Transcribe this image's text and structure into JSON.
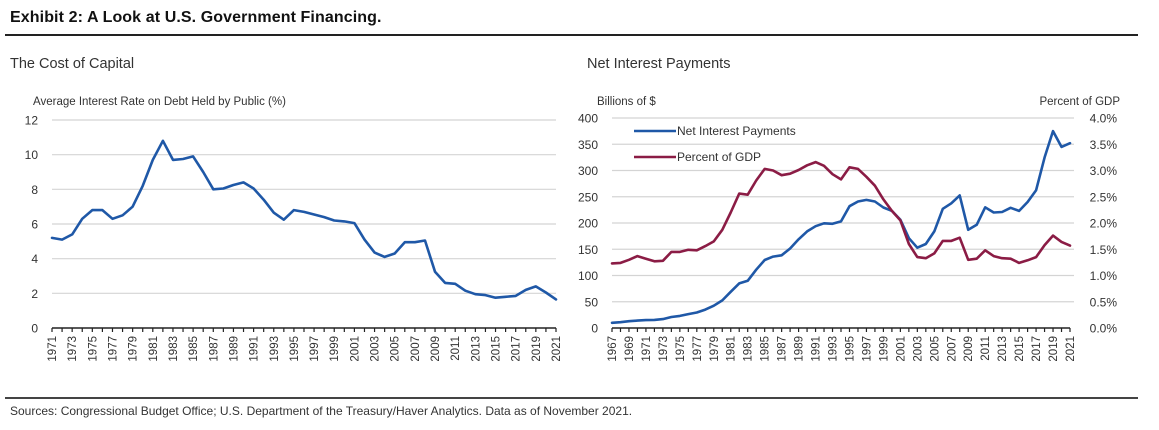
{
  "exhibit_title": "Exhibit 2: A Look at U.S. Government Financing.",
  "sources": "Sources: Congressional Budget Office; U.S. Department of the Treasury/Haver Analytics. Data as of November 2021.",
  "colors": {
    "blue": "#1f58a7",
    "maroon": "#8b1c45",
    "grid": "#d4d4d4"
  },
  "chart_data": [
    {
      "type": "line",
      "title": "The Cost of Capital",
      "ylabel": "Average Interest Rate on Debt Held by Public (%)",
      "xlabel": "",
      "ylim": [
        0,
        12
      ],
      "yticks": [
        "0",
        "2",
        "4",
        "6",
        "8",
        "10",
        "12"
      ],
      "ytick_values": [
        0,
        2,
        4,
        6,
        8,
        10,
        12
      ],
      "grid": true,
      "x": [
        1971,
        1972,
        1973,
        1974,
        1975,
        1976,
        1977,
        1978,
        1979,
        1980,
        1981,
        1982,
        1983,
        1984,
        1985,
        1986,
        1987,
        1988,
        1989,
        1990,
        1991,
        1992,
        1993,
        1994,
        1995,
        1996,
        1997,
        1998,
        1999,
        2000,
        2001,
        2002,
        2003,
        2004,
        2005,
        2006,
        2007,
        2008,
        2009,
        2010,
        2011,
        2012,
        2013,
        2014,
        2015,
        2016,
        2017,
        2018,
        2019,
        2020,
        2021
      ],
      "xtick_labels": [
        "1971",
        "1973",
        "1975",
        "1977",
        "1979",
        "1981",
        "1983",
        "1985",
        "1987",
        "1989",
        "1991",
        "1993",
        "1995",
        "1997",
        "1999",
        "2001",
        "2003",
        "2005",
        "2007",
        "2009",
        "2011",
        "2013",
        "2015",
        "2017",
        "2019",
        "2021"
      ],
      "series": [
        {
          "name": "Average Interest Rate",
          "color": "#1f58a7",
          "values": [
            5.2,
            5.1,
            5.4,
            6.3,
            6.8,
            6.8,
            6.3,
            6.5,
            7.0,
            8.2,
            9.7,
            10.8,
            9.7,
            9.75,
            9.9,
            9.0,
            8.0,
            8.05,
            8.25,
            8.4,
            8.05,
            7.4,
            6.65,
            6.25,
            6.8,
            6.7,
            6.55,
            6.4,
            6.2,
            6.15,
            6.05,
            5.1,
            4.35,
            4.1,
            4.3,
            4.95,
            4.95,
            5.05,
            3.25,
            2.6,
            2.55,
            2.15,
            1.95,
            1.9,
            1.75,
            1.8,
            1.85,
            2.2,
            2.4,
            2.05,
            1.65
          ]
        }
      ]
    },
    {
      "type": "line",
      "title": "Net Interest Payments",
      "ylabel": "Billions of $",
      "y2label": "Percent of GDP",
      "ylim": [
        0,
        400
      ],
      "y2lim": [
        0,
        4
      ],
      "yticks": [
        "0",
        "50",
        "100",
        "150",
        "200",
        "250",
        "300",
        "350",
        "400"
      ],
      "ytick_values": [
        0,
        50,
        100,
        150,
        200,
        250,
        300,
        350,
        400
      ],
      "y2ticks": [
        "0.0%",
        "0.5%",
        "1.0%",
        "1.5%",
        "2.0%",
        "2.5%",
        "3.0%",
        "3.5%",
        "4.0%"
      ],
      "grid": true,
      "legend_position": "top-left",
      "x": [
        1967,
        1968,
        1969,
        1970,
        1971,
        1972,
        1973,
        1974,
        1975,
        1976,
        1977,
        1978,
        1979,
        1980,
        1981,
        1982,
        1983,
        1984,
        1985,
        1986,
        1987,
        1988,
        1989,
        1990,
        1991,
        1992,
        1993,
        1994,
        1995,
        1996,
        1997,
        1998,
        1999,
        2000,
        2001,
        2002,
        2003,
        2004,
        2005,
        2006,
        2007,
        2008,
        2009,
        2010,
        2011,
        2012,
        2013,
        2014,
        2015,
        2016,
        2017,
        2018,
        2019,
        2020,
        2021
      ],
      "xtick_labels": [
        "1967",
        "1969",
        "1971",
        "1973",
        "1975",
        "1977",
        "1979",
        "1981",
        "1983",
        "1985",
        "1987",
        "1989",
        "1991",
        "1993",
        "1995",
        "1997",
        "1999",
        "2001",
        "2003",
        "2005",
        "2007",
        "2009",
        "2011",
        "2013",
        "2015",
        "2017",
        "2019",
        "2021"
      ],
      "series": [
        {
          "name": "Net Interest Payments",
          "axis": "left",
          "color": "#1f58a7",
          "values": [
            10,
            11,
            13,
            14,
            15,
            15.5,
            17,
            21,
            23,
            26.5,
            29.5,
            35,
            42.5,
            52.5,
            69,
            85,
            90,
            111,
            129.5,
            136,
            138.5,
            151.5,
            169,
            184,
            194,
            199.5,
            198.5,
            203,
            232,
            241,
            244,
            241,
            229.5,
            223,
            206,
            171,
            153,
            160,
            184,
            227,
            237.5,
            252.5,
            187,
            196.5,
            230,
            220,
            221,
            229,
            223,
            240,
            262.5,
            325,
            375,
            345,
            352
          ]
        },
        {
          "name": "Percent of GDP",
          "axis": "right",
          "color": "#8b1c45",
          "values": [
            1.23,
            1.24,
            1.3,
            1.37,
            1.32,
            1.27,
            1.28,
            1.45,
            1.45,
            1.49,
            1.48,
            1.56,
            1.65,
            1.87,
            2.2,
            2.56,
            2.54,
            2.81,
            3.03,
            3.0,
            2.91,
            2.94,
            3.01,
            3.1,
            3.16,
            3.09,
            2.93,
            2.83,
            3.06,
            3.03,
            2.88,
            2.71,
            2.45,
            2.23,
            2.05,
            1.6,
            1.35,
            1.33,
            1.42,
            1.66,
            1.66,
            1.72,
            1.3,
            1.32,
            1.48,
            1.37,
            1.33,
            1.32,
            1.24,
            1.29,
            1.35,
            1.58,
            1.76,
            1.64,
            1.57
          ]
        }
      ]
    }
  ]
}
